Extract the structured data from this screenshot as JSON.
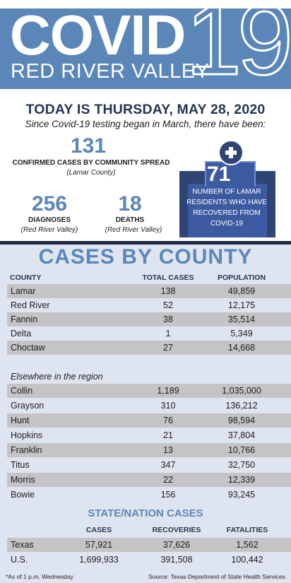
{
  "header": {
    "title": "COVID",
    "title_number": "19",
    "subtitle": "RED RIVER VALLEY"
  },
  "today": "TODAY IS THURSDAY, MAY 28, 2020",
  "since": "Since Covid-19 testing began in March, there have been:",
  "stats": {
    "community": {
      "value": "131",
      "label": "CONFIRMED CASES BY COMMUNITY SPREAD",
      "sub": "(Lamar County)"
    },
    "diagnoses": {
      "value": "256",
      "label": "DIAGNOSES",
      "sub": "(Red River Valley)"
    },
    "deaths": {
      "value": "18",
      "label": "DEATHS",
      "sub": "(Red River Valley)"
    },
    "recovered": {
      "value": "71",
      "label": "NUMBER OF LAMAR RESIDENTS WHO HAVE RECOVERED FROM COVID-19"
    }
  },
  "county_table": {
    "title": "CASES BY COUNTY",
    "headers": [
      "COUNTY",
      "TOTAL CASES",
      "POPULATION"
    ],
    "rows": [
      [
        "Lamar",
        "138",
        "49,859"
      ],
      [
        "Red River",
        "52",
        "12,175"
      ],
      [
        "Fannin",
        "38",
        "35,514"
      ],
      [
        "Delta",
        "1",
        "5,349"
      ],
      [
        "Choctaw",
        "27",
        "14,668"
      ]
    ],
    "elsewhere_label": "Elsewhere in the region",
    "region_rows": [
      [
        "Collin",
        "1,189",
        "1,035,000"
      ],
      [
        "Grayson",
        "310",
        "136,212"
      ],
      [
        "Hunt",
        "76",
        "98,594"
      ],
      [
        "Hopkins",
        "21",
        "37,804"
      ],
      [
        "Franklin",
        "13",
        "10,766"
      ],
      [
        "Titus",
        "347",
        "32,750"
      ],
      [
        "Morris",
        "22",
        "12,339"
      ],
      [
        "Bowie",
        "156",
        "93,245"
      ]
    ]
  },
  "state_table": {
    "title": "STATE/NATION CASES",
    "headers": [
      "CASES",
      "RECOVERIES",
      "FATALITIES"
    ],
    "rows": [
      [
        "Texas",
        "57,921",
        "37,626",
        "1,562"
      ],
      [
        "U.S.",
        "1,699,933",
        "391,508",
        "100,442"
      ]
    ]
  },
  "footer": {
    "note": "*As of 1 p.m. Wednesday",
    "source": "Source: Texas Department of State Health Services"
  },
  "colors": {
    "brand_blue": "#5b86b8",
    "navy": "#2f4474",
    "panel": "#dfe5f0",
    "row_shade": "#c4c4c7"
  },
  "icons": {
    "recovered": "plus-circle-icon"
  }
}
